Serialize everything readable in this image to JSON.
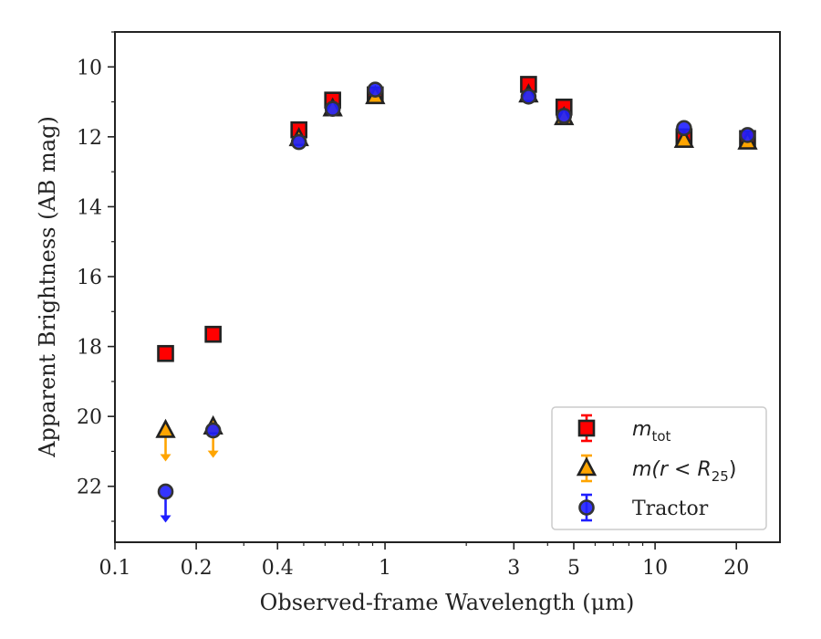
{
  "chart_data": {
    "type": "scatter",
    "xlabel": "Observed-frame Wavelength (μm)",
    "ylabel": "Apparent Brightness (AB mag)",
    "x_scale": "log",
    "y_inverted": true,
    "xlim": [
      0.1,
      29
    ],
    "ylim": [
      23.6,
      9.0
    ],
    "x_ticks": [
      0.1,
      0.2,
      0.4,
      1,
      3,
      5,
      10,
      20
    ],
    "x_tick_labels": [
      "0.1",
      "0.2",
      "0.4",
      "1",
      "3",
      "5",
      "10",
      "20"
    ],
    "y_ticks": [
      10,
      12,
      14,
      16,
      18,
      20,
      22
    ],
    "y_tick_labels": [
      "10",
      "12",
      "14",
      "16",
      "18",
      "20",
      "22"
    ],
    "grid": false,
    "legend_position": "lower-right",
    "series": [
      {
        "name": "m_tot",
        "legend_main": "m",
        "legend_sub": "tot",
        "marker": "square",
        "color": "#ff0000",
        "points": [
          {
            "x": 0.154,
            "y": 18.2
          },
          {
            "x": 0.231,
            "y": 17.65
          },
          {
            "x": 0.48,
            "y": 11.8
          },
          {
            "x": 0.64,
            "y": 10.95
          },
          {
            "x": 0.92,
            "y": 10.8
          },
          {
            "x": 3.4,
            "y": 10.5
          },
          {
            "x": 4.6,
            "y": 11.15
          },
          {
            "x": 12.8,
            "y": 12.0
          },
          {
            "x": 22.0,
            "y": 12.05
          }
        ]
      },
      {
        "name": "m(r < R25)",
        "legend_main": "m(r < R",
        "legend_sub": "25",
        "legend_tail": ")",
        "marker": "triangle",
        "color": "#ffa500",
        "points": [
          {
            "x": 0.154,
            "y": 20.4,
            "upper_limit": true
          },
          {
            "x": 0.231,
            "y": 20.3,
            "upper_limit": true
          },
          {
            "x": 0.48,
            "y": 12.05
          },
          {
            "x": 0.64,
            "y": 11.2
          },
          {
            "x": 0.92,
            "y": 10.85
          },
          {
            "x": 3.4,
            "y": 10.8
          },
          {
            "x": 4.6,
            "y": 11.45
          },
          {
            "x": 12.8,
            "y": 12.1
          },
          {
            "x": 22.0,
            "y": 12.15
          }
        ]
      },
      {
        "name": "Tractor",
        "legend_main": "Tractor",
        "marker": "circle",
        "color": "#1f1fff",
        "points": [
          {
            "x": 0.154,
            "y": 22.15,
            "upper_limit": true
          },
          {
            "x": 0.231,
            "y": 20.4
          },
          {
            "x": 0.48,
            "y": 12.15
          },
          {
            "x": 0.64,
            "y": 11.2
          },
          {
            "x": 0.92,
            "y": 10.65
          },
          {
            "x": 3.4,
            "y": 10.85
          },
          {
            "x": 4.6,
            "y": 11.4
          },
          {
            "x": 12.8,
            "y": 11.75
          },
          {
            "x": 22.0,
            "y": 11.95
          }
        ]
      }
    ]
  }
}
